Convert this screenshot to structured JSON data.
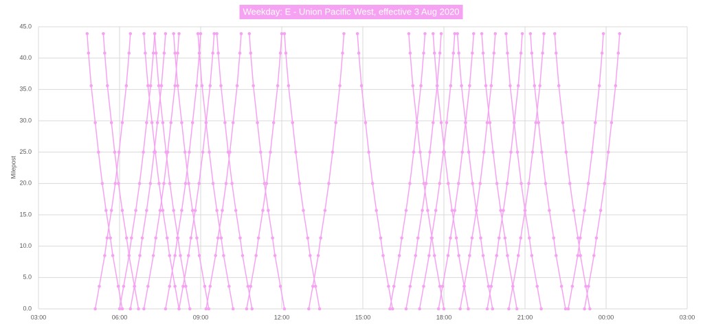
{
  "chart_data": {
    "type": "line",
    "title": "Weekday: E - Union Pacific West, effective 3 Aug 2020",
    "y_label": "Milepost",
    "color": "#f6a2f2",
    "grid": true,
    "xlim": [
      3,
      27
    ],
    "xticks": [
      {
        "value": 3,
        "label": "03:00"
      },
      {
        "value": 6,
        "label": "06:00"
      },
      {
        "value": 9,
        "label": "09:00"
      },
      {
        "value": 12,
        "label": "12:00"
      },
      {
        "value": 15,
        "label": "15:00"
      },
      {
        "value": 18,
        "label": "18:00"
      },
      {
        "value": 21,
        "label": "21:00"
      },
      {
        "value": 24,
        "label": "00:00"
      },
      {
        "value": 27,
        "label": "03:00"
      }
    ],
    "ylim": [
      0,
      45
    ],
    "yticks": [
      {
        "value": 0,
        "label": "0.0"
      },
      {
        "value": 5,
        "label": "5.0"
      },
      {
        "value": 10,
        "label": "10.0"
      },
      {
        "value": 15,
        "label": "15.0"
      },
      {
        "value": 20,
        "label": "20.0"
      },
      {
        "value": 25,
        "label": "25.0"
      },
      {
        "value": 30,
        "label": "30.0"
      },
      {
        "value": 35,
        "label": "35.0"
      },
      {
        "value": 40,
        "label": "40.0"
      },
      {
        "value": 45,
        "label": "45.0"
      }
    ],
    "series": [
      {
        "x": [
          4.8,
          4.85,
          4.95,
          5.1,
          5.22,
          5.36,
          5.5,
          5.66,
          5.75,
          5.95,
          6.1
        ],
        "values": [
          43.9,
          40.8,
          35.6,
          29.7,
          25,
          20,
          15.7,
          11.3,
          8.5,
          3.6,
          0
        ]
      },
      {
        "x": [
          5.4,
          5.45,
          5.55,
          5.7,
          5.82,
          5.96,
          6.1,
          6.26,
          6.35,
          6.55,
          6.7
        ],
        "values": [
          43.9,
          40.8,
          35.6,
          29.7,
          25,
          20,
          15.7,
          11.3,
          8.5,
          3.6,
          0
        ]
      },
      {
        "x": [
          6.9,
          6.95,
          7.05,
          7.2,
          7.32,
          7.46,
          7.6,
          7.76,
          7.85,
          8.05,
          8.2
        ],
        "values": [
          43.9,
          40.8,
          35.6,
          29.7,
          25,
          20,
          15.7,
          11.3,
          8.5,
          3.6,
          0
        ]
      },
      {
        "x": [
          7.3,
          7.35,
          7.45,
          7.6,
          7.72,
          7.86,
          8,
          8.16,
          8.25,
          8.45,
          8.6
        ],
        "values": [
          43.9,
          40.8,
          35.6,
          29.7,
          25,
          20,
          15.7,
          11.3,
          8.5,
          3.6,
          0
        ]
      },
      {
        "x": [
          8,
          8.05,
          8.15,
          8.3,
          8.42,
          8.56,
          8.7,
          8.86,
          8.95,
          9.15,
          9.3
        ],
        "values": [
          43.9,
          40.8,
          35.6,
          29.7,
          25,
          20,
          15.7,
          11.3,
          8.5,
          3.6,
          0
        ]
      },
      {
        "x": [
          8.9,
          8.95,
          9.05,
          9.2,
          9.32,
          9.46,
          9.6,
          9.76,
          9.85,
          10.05,
          10.2
        ],
        "values": [
          43.9,
          40.8,
          35.6,
          29.7,
          25,
          20,
          15.7,
          11.3,
          8.5,
          3.6,
          0
        ]
      },
      {
        "x": [
          9.6,
          9.65,
          9.75,
          9.9,
          10.02,
          10.16,
          10.3,
          10.46,
          10.55,
          10.75,
          10.9
        ],
        "values": [
          43.9,
          40.8,
          35.6,
          29.7,
          25,
          20,
          15.7,
          11.3,
          8.5,
          3.6,
          0
        ]
      },
      {
        "x": [
          10.8,
          10.85,
          10.95,
          11.1,
          11.22,
          11.36,
          11.5,
          11.66,
          11.75,
          11.95,
          12.1
        ],
        "values": [
          43.9,
          40.8,
          35.6,
          29.7,
          25,
          20,
          15.7,
          11.3,
          8.5,
          3.6,
          0
        ]
      },
      {
        "x": [
          12.1,
          12.15,
          12.25,
          12.4,
          12.52,
          12.66,
          12.8,
          12.96,
          13.05,
          13.25,
          13.4
        ],
        "values": [
          43.9,
          40.8,
          35.6,
          29.7,
          25,
          20,
          15.7,
          11.3,
          8.5,
          3.6,
          0
        ]
      },
      {
        "x": [
          14.8,
          14.85,
          14.95,
          15.1,
          15.22,
          15.36,
          15.5,
          15.66,
          15.75,
          15.95,
          16.1
        ],
        "values": [
          43.9,
          40.8,
          35.6,
          29.7,
          25,
          20,
          15.7,
          11.3,
          8.5,
          3.6,
          0
        ]
      },
      {
        "x": [
          16.7,
          16.75,
          16.85,
          17,
          17.12,
          17.26,
          17.4,
          17.56,
          17.65,
          17.85,
          18
        ],
        "values": [
          43.9,
          40.8,
          35.6,
          29.7,
          25,
          20,
          15.7,
          11.3,
          8.5,
          3.6,
          0
        ]
      },
      {
        "x": [
          17.6,
          17.65,
          17.75,
          17.9,
          18.02,
          18.16,
          18.3,
          18.46,
          18.55,
          18.75,
          18.9
        ],
        "values": [
          43.9,
          40.8,
          35.6,
          29.7,
          25,
          20,
          15.7,
          11.3,
          8.5,
          3.6,
          0
        ]
      },
      {
        "x": [
          18.5,
          18.55,
          18.65,
          18.8,
          18.92,
          19.06,
          19.2,
          19.36,
          19.45,
          19.65,
          19.8
        ],
        "values": [
          43.9,
          40.8,
          35.6,
          29.7,
          25,
          20,
          15.7,
          11.3,
          8.5,
          3.6,
          0
        ]
      },
      {
        "x": [
          19.4,
          19.45,
          19.55,
          19.7,
          19.82,
          19.96,
          20.1,
          20.26,
          20.35,
          20.55,
          20.7
        ],
        "values": [
          43.9,
          40.8,
          35.6,
          29.7,
          25,
          20,
          15.7,
          11.3,
          8.5,
          3.6,
          0
        ]
      },
      {
        "x": [
          20.3,
          20.35,
          20.45,
          20.6,
          20.72,
          20.86,
          21,
          21.16,
          21.25,
          21.45,
          21.6
        ],
        "values": [
          43.9,
          40.8,
          35.6,
          29.7,
          25,
          20,
          15.7,
          11.3,
          8.5,
          3.6,
          0
        ]
      },
      {
        "x": [
          21.2,
          21.25,
          21.35,
          21.5,
          21.62,
          21.76,
          21.9,
          22.06,
          22.15,
          22.35,
          22.5
        ],
        "values": [
          43.9,
          40.8,
          35.6,
          29.7,
          25,
          20,
          15.7,
          11.3,
          8.5,
          3.6,
          0
        ]
      },
      {
        "x": [
          22.1,
          22.15,
          22.25,
          22.4,
          22.52,
          22.66,
          22.8,
          22.96,
          23.05,
          23.25,
          23.4
        ],
        "values": [
          43.9,
          40.8,
          35.6,
          29.7,
          25,
          20,
          15.7,
          11.3,
          8.5,
          3.6,
          0
        ]
      },
      {
        "x": [
          5.1,
          5.25,
          5.45,
          5.54,
          5.7,
          5.84,
          5.98,
          6.1,
          6.25,
          6.35,
          6.4
        ],
        "values": [
          0,
          3.6,
          8.5,
          11.3,
          15.7,
          20,
          25,
          29.7,
          35.6,
          40.8,
          43.9
        ]
      },
      {
        "x": [
          6,
          6.15,
          6.35,
          6.44,
          6.6,
          6.74,
          6.88,
          7,
          7.15,
          7.25,
          7.3
        ],
        "values": [
          0,
          3.6,
          8.5,
          11.3,
          15.7,
          20,
          25,
          29.7,
          35.6,
          40.8,
          43.9
        ]
      },
      {
        "x": [
          6.4,
          6.55,
          6.75,
          6.84,
          7,
          7.14,
          7.28,
          7.4,
          7.55,
          7.65,
          7.7
        ],
        "values": [
          0,
          3.6,
          8.5,
          11.3,
          15.7,
          20,
          25,
          29.7,
          35.6,
          40.8,
          43.9
        ]
      },
      {
        "x": [
          6.9,
          7.05,
          7.25,
          7.34,
          7.5,
          7.64,
          7.78,
          7.9,
          8.05,
          8.15,
          8.2
        ],
        "values": [
          0,
          3.6,
          8.5,
          11.3,
          15.7,
          20,
          25,
          29.7,
          35.6,
          40.8,
          43.9
        ]
      },
      {
        "x": [
          7.7,
          7.85,
          8.05,
          8.14,
          8.3,
          8.44,
          8.58,
          8.7,
          8.85,
          8.95,
          9
        ],
        "values": [
          0,
          3.6,
          8.5,
          11.3,
          15.7,
          20,
          25,
          29.7,
          35.6,
          40.8,
          43.9
        ]
      },
      {
        "x": [
          8.2,
          8.35,
          8.55,
          8.64,
          8.8,
          8.94,
          9.08,
          9.2,
          9.35,
          9.45,
          9.5
        ],
        "values": [
          0,
          3.6,
          8.5,
          11.3,
          15.7,
          20,
          25,
          29.7,
          35.6,
          40.8,
          43.9
        ]
      },
      {
        "x": [
          9.2,
          9.35,
          9.55,
          9.64,
          9.8,
          9.94,
          10.08,
          10.2,
          10.35,
          10.45,
          10.5
        ],
        "values": [
          0,
          3.6,
          8.5,
          11.3,
          15.7,
          20,
          25,
          29.7,
          35.6,
          40.8,
          43.9
        ]
      },
      {
        "x": [
          10.7,
          10.85,
          11.05,
          11.14,
          11.3,
          11.44,
          11.58,
          11.7,
          11.85,
          11.95,
          12
        ],
        "values": [
          0,
          3.6,
          8.5,
          11.3,
          15.7,
          20,
          25,
          29.7,
          35.6,
          40.8,
          43.9
        ]
      },
      {
        "x": [
          13,
          13.15,
          13.35,
          13.44,
          13.6,
          13.74,
          13.88,
          14,
          14.15,
          14.25,
          14.3
        ],
        "values": [
          0,
          3.6,
          8.5,
          11.3,
          15.7,
          20,
          25,
          29.7,
          35.6,
          40.8,
          43.9
        ]
      },
      {
        "x": [
          16,
          16.15,
          16.35,
          16.44,
          16.6,
          16.74,
          16.88,
          17,
          17.15,
          17.25,
          17.3
        ],
        "values": [
          0,
          3.6,
          8.5,
          11.3,
          15.7,
          20,
          25,
          29.7,
          35.6,
          40.8,
          43.9
        ]
      },
      {
        "x": [
          16.6,
          16.75,
          16.95,
          17.04,
          17.2,
          17.34,
          17.48,
          17.6,
          17.75,
          17.85,
          17.9
        ],
        "values": [
          0,
          3.6,
          8.5,
          11.3,
          15.7,
          20,
          25,
          29.7,
          35.6,
          40.8,
          43.9
        ]
      },
      {
        "x": [
          17.1,
          17.25,
          17.45,
          17.54,
          17.7,
          17.84,
          17.98,
          18.1,
          18.25,
          18.35,
          18.4
        ],
        "values": [
          0,
          3.6,
          8.5,
          11.3,
          15.7,
          20,
          25,
          29.7,
          35.6,
          40.8,
          43.9
        ]
      },
      {
        "x": [
          17.8,
          17.95,
          18.15,
          18.24,
          18.4,
          18.54,
          18.68,
          18.8,
          18.95,
          19.05,
          19.1
        ],
        "values": [
          0,
          3.6,
          8.5,
          11.3,
          15.7,
          20,
          25,
          29.7,
          35.6,
          40.8,
          43.9
        ]
      },
      {
        "x": [
          18.6,
          18.75,
          18.95,
          19.04,
          19.2,
          19.34,
          19.48,
          19.6,
          19.75,
          19.85,
          19.9
        ],
        "values": [
          0,
          3.6,
          8.5,
          11.3,
          15.7,
          20,
          25,
          29.7,
          35.6,
          40.8,
          43.9
        ]
      },
      {
        "x": [
          19.6,
          19.75,
          19.95,
          20.04,
          20.2,
          20.34,
          20.48,
          20.6,
          20.75,
          20.85,
          20.9
        ],
        "values": [
          0,
          3.6,
          8.5,
          11.3,
          15.7,
          20,
          25,
          29.7,
          35.6,
          40.8,
          43.9
        ]
      },
      {
        "x": [
          20.4,
          20.55,
          20.75,
          20.84,
          21,
          21.14,
          21.28,
          21.4,
          21.55,
          21.65,
          21.7
        ],
        "values": [
          0,
          3.6,
          8.5,
          11.3,
          15.7,
          20,
          25,
          29.7,
          35.6,
          40.8,
          43.9
        ]
      },
      {
        "x": [
          22.6,
          22.75,
          22.95,
          23.04,
          23.2,
          23.34,
          23.48,
          23.6,
          23.75,
          23.85,
          23.9
        ],
        "values": [
          0,
          3.6,
          8.5,
          11.3,
          15.7,
          20,
          25,
          29.7,
          35.6,
          40.8,
          43.9
        ]
      },
      {
        "x": [
          23.2,
          23.35,
          23.55,
          23.64,
          23.8,
          23.94,
          24.08,
          24.2,
          24.35,
          24.45,
          24.5
        ],
        "values": [
          0,
          3.6,
          8.5,
          11.3,
          15.7,
          20,
          25,
          29.7,
          35.6,
          40.8,
          43.9
        ]
      }
    ]
  }
}
